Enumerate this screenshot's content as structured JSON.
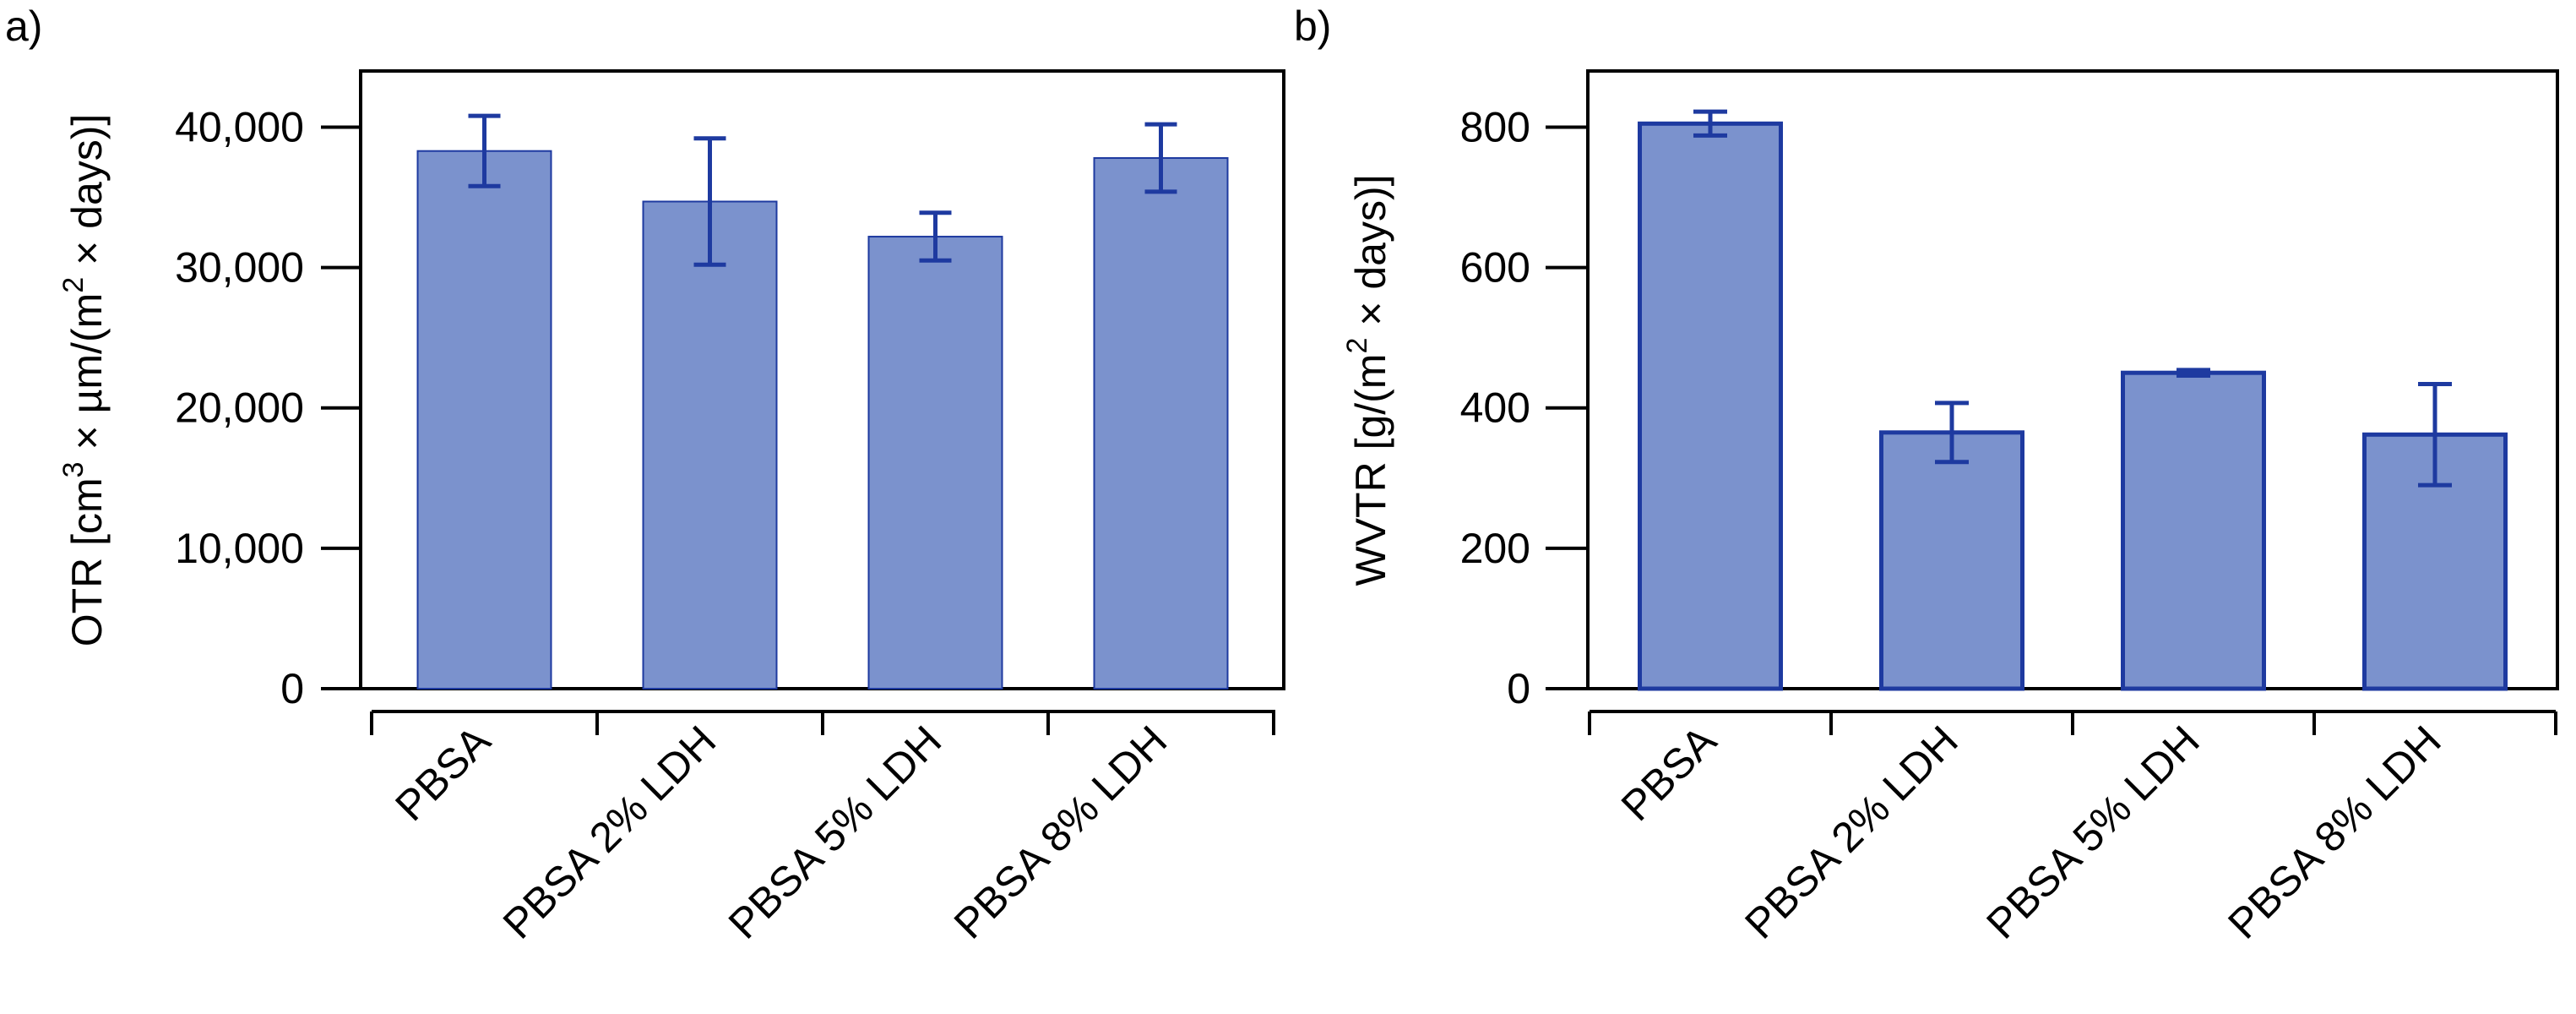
{
  "colors": {
    "bar_fill": "#7b92cd",
    "bar_edge": "#1e3aa0",
    "error_bar": "#1e3aa0",
    "axis": "#000000"
  },
  "chart_data": [
    {
      "panel": "a)",
      "type": "bar",
      "categories": [
        "PBSA",
        "PBSA 2% LDH",
        "PBSA 5% LDH",
        "PBSA 8% LDH"
      ],
      "values": [
        38300,
        34700,
        32200,
        37800
      ],
      "errors": [
        2500,
        4500,
        1700,
        2400
      ],
      "ylabel_parts": [
        "OTR [cm",
        "3",
        " × µm/(m",
        "2",
        " × days)]"
      ],
      "ylim": [
        0,
        44000
      ],
      "yticks": [
        0,
        10000,
        20000,
        30000,
        40000
      ],
      "ytick_labels": [
        "0",
        "10,000",
        "20,000",
        "30,000",
        "40,000"
      ],
      "xlabel": "",
      "grid": false,
      "legend": "none"
    },
    {
      "panel": "b)",
      "type": "bar",
      "categories": [
        "PBSA",
        "PBSA 2% LDH",
        "PBSA 5% LDH",
        "PBSA 8% LDH"
      ],
      "values": [
        805,
        365,
        450,
        362
      ],
      "errors": [
        17,
        42,
        4,
        72
      ],
      "ylabel_parts": [
        "WVTR [g/(m",
        "2",
        " × days)]"
      ],
      "ylim": [
        0,
        880
      ],
      "yticks": [
        0,
        200,
        400,
        600,
        800
      ],
      "ytick_labels": [
        "0",
        "200",
        "400",
        "600",
        "800"
      ],
      "xlabel": "",
      "grid": false,
      "legend": "none"
    }
  ]
}
